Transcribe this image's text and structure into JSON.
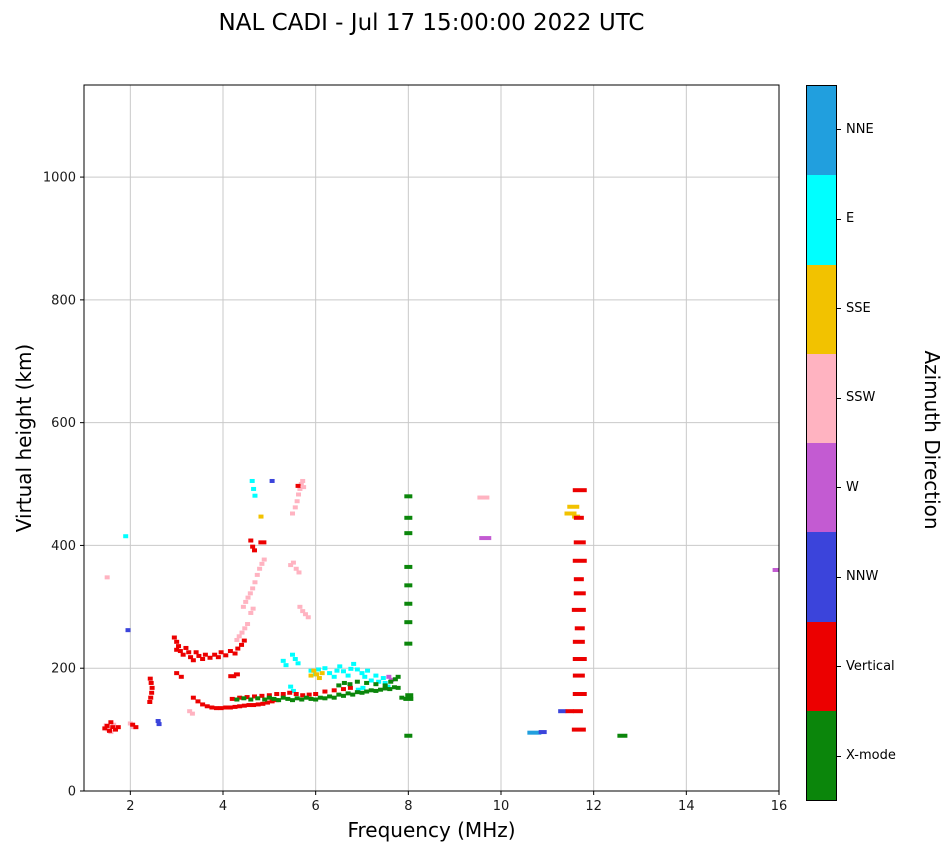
{
  "chart_data": {
    "type": "scatter",
    "title": "NAL CADI - Jul 17 15:00:00 2022 UTC",
    "xlabel": "Frequency (MHz)",
    "ylabel": "Virtual height (km)",
    "colorbar_label": "Azimuth Direction",
    "xlim": [
      1,
      16
    ],
    "ylim": [
      0,
      1150
    ],
    "xticks": [
      2,
      4,
      6,
      8,
      10,
      12,
      14,
      16
    ],
    "yticks": [
      0,
      200,
      400,
      600,
      800,
      1000
    ],
    "grid": true,
    "legend_position": "right-colorbar",
    "point_note": "points are [frequency_MHz, virtual_height_km, optional_dash_width_px]",
    "series": [
      {
        "name": "NNE",
        "color": "#219FDE",
        "points": [
          [
            10.72,
            95,
            14
          ]
        ]
      },
      {
        "name": "E",
        "color": "#00FFFF",
        "points": [
          [
            1.9,
            415
          ],
          [
            4.63,
            505
          ],
          [
            4.66,
            492
          ],
          [
            4.69,
            481
          ],
          [
            5.3,
            212
          ],
          [
            5.36,
            205
          ],
          [
            5.5,
            222
          ],
          [
            5.56,
            215
          ],
          [
            5.62,
            208
          ],
          [
            5.46,
            170
          ],
          [
            5.52,
            163
          ],
          [
            5.9,
            196
          ],
          [
            6.0,
            190
          ],
          [
            6.06,
            198
          ],
          [
            6.2,
            200
          ],
          [
            6.3,
            192
          ],
          [
            6.4,
            186
          ],
          [
            6.46,
            196
          ],
          [
            6.52,
            203
          ],
          [
            6.6,
            195
          ],
          [
            6.7,
            188
          ],
          [
            6.76,
            199
          ],
          [
            6.82,
            207
          ],
          [
            6.9,
            198
          ],
          [
            7.0,
            192
          ],
          [
            7.06,
            186
          ],
          [
            7.12,
            196
          ],
          [
            7.2,
            180
          ],
          [
            7.3,
            188
          ],
          [
            7.36,
            178
          ],
          [
            7.46,
            184
          ],
          [
            7.5,
            176
          ],
          [
            7.56,
            170
          ],
          [
            6.92,
            165
          ],
          [
            7.02,
            168
          ]
        ]
      },
      {
        "name": "SSE",
        "color": "#F2C200",
        "points": [
          [
            4.82,
            447
          ],
          [
            5.9,
            188
          ],
          [
            5.96,
            196
          ],
          [
            6.02,
            190
          ],
          [
            6.08,
            184
          ],
          [
            6.14,
            192
          ],
          [
            11.5,
            452,
            12
          ],
          [
            11.56,
            463,
            12
          ],
          [
            11.62,
            447,
            8
          ]
        ]
      },
      {
        "name": "SSW",
        "color": "#FFB3C1",
        "points": [
          [
            1.5,
            348
          ],
          [
            1.52,
            100
          ],
          [
            1.58,
            96
          ],
          [
            1.64,
            108
          ],
          [
            1.48,
            107
          ],
          [
            2.0,
            110
          ],
          [
            2.06,
            104
          ],
          [
            3.28,
            130
          ],
          [
            3.34,
            126
          ],
          [
            4.3,
            246
          ],
          [
            4.35,
            252
          ],
          [
            4.41,
            258
          ],
          [
            4.47,
            265
          ],
          [
            4.53,
            272
          ],
          [
            4.44,
            300
          ],
          [
            4.49,
            308
          ],
          [
            4.54,
            315
          ],
          [
            4.59,
            322
          ],
          [
            4.64,
            330
          ],
          [
            4.69,
            340
          ],
          [
            4.6,
            290
          ],
          [
            4.65,
            297
          ],
          [
            4.74,
            352
          ],
          [
            4.79,
            362
          ],
          [
            4.84,
            370
          ],
          [
            4.89,
            377
          ],
          [
            5.46,
            368
          ],
          [
            5.52,
            372
          ],
          [
            5.58,
            362
          ],
          [
            5.64,
            356
          ],
          [
            5.66,
            300
          ],
          [
            5.72,
            293
          ],
          [
            5.78,
            288
          ],
          [
            5.84,
            283
          ],
          [
            5.5,
            452
          ],
          [
            5.56,
            462
          ],
          [
            5.6,
            472
          ],
          [
            5.63,
            483
          ],
          [
            5.66,
            492
          ],
          [
            5.69,
            500
          ],
          [
            5.72,
            505
          ],
          [
            5.74,
            495
          ],
          [
            9.62,
            478,
            12
          ]
        ]
      },
      {
        "name": "W",
        "color": "#C35BD2",
        "points": [
          [
            7.58,
            186
          ],
          [
            7.64,
            181
          ],
          [
            9.66,
            412,
            12
          ],
          [
            15.97,
            360,
            10
          ]
        ]
      },
      {
        "name": "NNW",
        "color": "#3B44DB",
        "points": [
          [
            1.95,
            262
          ],
          [
            2.6,
            114
          ],
          [
            2.62,
            109
          ],
          [
            5.06,
            505
          ],
          [
            10.9,
            96,
            8
          ],
          [
            11.32,
            130,
            8
          ]
        ]
      },
      {
        "name": "Vertical",
        "color": "#EC0000",
        "points": [
          [
            1.45,
            102
          ],
          [
            1.5,
            106
          ],
          [
            1.55,
            98
          ],
          [
            1.62,
            104
          ],
          [
            1.68,
            100
          ],
          [
            1.74,
            104
          ],
          [
            1.58,
            112
          ],
          [
            2.05,
            108
          ],
          [
            2.12,
            104
          ],
          [
            2.42,
            145
          ],
          [
            2.44,
            152
          ],
          [
            2.46,
            160
          ],
          [
            2.47,
            168
          ],
          [
            2.45,
            176
          ],
          [
            2.43,
            183
          ],
          [
            2.95,
            250
          ],
          [
            3.0,
            243
          ],
          [
            3.04,
            236
          ],
          [
            3.0,
            230
          ],
          [
            3.08,
            228
          ],
          [
            3.14,
            222
          ],
          [
            3.2,
            233
          ],
          [
            3.26,
            226
          ],
          [
            3.3,
            218
          ],
          [
            3.36,
            213
          ],
          [
            3.42,
            226
          ],
          [
            3.48,
            220
          ],
          [
            3.56,
            215
          ],
          [
            3.62,
            222
          ],
          [
            3.72,
            217
          ],
          [
            3.82,
            222
          ],
          [
            3.9,
            218
          ],
          [
            3.96,
            226
          ],
          [
            4.06,
            221
          ],
          [
            4.16,
            228
          ],
          [
            4.26,
            224
          ],
          [
            4.32,
            232
          ],
          [
            4.4,
            238
          ],
          [
            4.46,
            245
          ],
          [
            3.0,
            192
          ],
          [
            3.1,
            186
          ],
          [
            3.36,
            152
          ],
          [
            3.46,
            146
          ],
          [
            3.56,
            141
          ],
          [
            3.66,
            138
          ],
          [
            3.76,
            136
          ],
          [
            3.86,
            135
          ],
          [
            3.96,
            135
          ],
          [
            4.06,
            136
          ],
          [
            4.16,
            136
          ],
          [
            4.26,
            137
          ],
          [
            4.36,
            138
          ],
          [
            4.46,
            139
          ],
          [
            4.56,
            140
          ],
          [
            4.66,
            140
          ],
          [
            4.76,
            141
          ],
          [
            4.86,
            142
          ],
          [
            4.96,
            144
          ],
          [
            5.06,
            146
          ],
          [
            5.16,
            148
          ],
          [
            4.2,
            150
          ],
          [
            4.36,
            152
          ],
          [
            4.52,
            153
          ],
          [
            4.68,
            154
          ],
          [
            4.84,
            155
          ],
          [
            5.0,
            156
          ],
          [
            5.16,
            158
          ],
          [
            5.3,
            158
          ],
          [
            5.44,
            160
          ],
          [
            5.58,
            158
          ],
          [
            5.72,
            156
          ],
          [
            5.86,
            157
          ],
          [
            6.0,
            158
          ],
          [
            6.2,
            162
          ],
          [
            6.4,
            164
          ],
          [
            6.6,
            166
          ],
          [
            6.75,
            168
          ],
          [
            4.2,
            187,
            8
          ],
          [
            4.3,
            190,
            6
          ],
          [
            4.6,
            408
          ],
          [
            4.64,
            398
          ],
          [
            4.68,
            392
          ],
          [
            4.85,
            405,
            8
          ],
          [
            5.62,
            497
          ],
          [
            11.68,
            100,
            14
          ],
          [
            11.66,
            130,
            10
          ],
          [
            11.7,
            158,
            14
          ],
          [
            11.68,
            188,
            12
          ],
          [
            11.7,
            215,
            14
          ],
          [
            11.68,
            243,
            12
          ],
          [
            11.7,
            265,
            10
          ],
          [
            11.68,
            295,
            14
          ],
          [
            11.7,
            322,
            12
          ],
          [
            11.68,
            345,
            10
          ],
          [
            11.7,
            375,
            14
          ],
          [
            11.7,
            405,
            12
          ],
          [
            11.68,
            445,
            10
          ],
          [
            11.7,
            490,
            14
          ],
          [
            11.48,
            130,
            8
          ]
        ]
      },
      {
        "name": "X-mode",
        "color": "#0B860B",
        "points": [
          [
            4.3,
            149
          ],
          [
            4.45,
            151
          ],
          [
            4.6,
            149
          ],
          [
            4.75,
            151
          ],
          [
            4.9,
            149
          ],
          [
            5.0,
            152
          ],
          [
            5.1,
            150
          ],
          [
            5.2,
            148
          ],
          [
            5.3,
            152
          ],
          [
            5.4,
            150
          ],
          [
            5.5,
            148
          ],
          [
            5.6,
            151
          ],
          [
            5.7,
            149
          ],
          [
            5.8,
            152
          ],
          [
            5.9,
            150
          ],
          [
            6.0,
            149
          ],
          [
            6.1,
            152
          ],
          [
            6.2,
            151
          ],
          [
            6.3,
            154
          ],
          [
            6.4,
            152
          ],
          [
            6.5,
            157
          ],
          [
            6.6,
            155
          ],
          [
            6.7,
            159
          ],
          [
            6.8,
            157
          ],
          [
            6.9,
            161
          ],
          [
            7.0,
            160
          ],
          [
            7.1,
            162
          ],
          [
            7.2,
            164
          ],
          [
            7.3,
            163
          ],
          [
            7.4,
            165
          ],
          [
            7.5,
            167
          ],
          [
            7.6,
            166
          ],
          [
            7.7,
            169
          ],
          [
            7.78,
            168
          ],
          [
            7.86,
            152
          ],
          [
            6.5,
            172
          ],
          [
            6.62,
            176
          ],
          [
            6.74,
            174
          ],
          [
            6.9,
            178
          ],
          [
            7.1,
            176
          ],
          [
            7.3,
            174
          ],
          [
            7.5,
            172
          ],
          [
            7.62,
            178
          ],
          [
            7.72,
            182
          ],
          [
            7.78,
            186
          ],
          [
            8.0,
            90,
            8
          ],
          [
            8.0,
            150,
            10
          ],
          [
            8.02,
            156,
            8
          ],
          [
            8.0,
            240,
            8
          ],
          [
            8.0,
            275,
            8
          ],
          [
            8.0,
            305,
            8
          ],
          [
            8.0,
            335,
            8
          ],
          [
            8.0,
            365,
            8
          ],
          [
            8.0,
            420,
            8
          ],
          [
            8.0,
            445,
            8
          ],
          [
            8.0,
            480,
            8
          ],
          [
            12.62,
            90,
            10
          ]
        ]
      }
    ]
  }
}
